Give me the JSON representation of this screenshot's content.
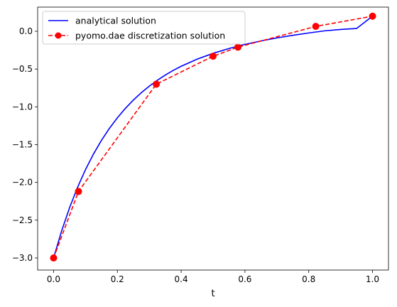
{
  "chart_data": {
    "type": "line",
    "xlabel": "t",
    "ylabel": "",
    "title": "",
    "xlim": [
      -0.05,
      1.05
    ],
    "ylim": [
      -3.16,
      0.32
    ],
    "xticks": [
      0.0,
      0.2,
      0.4,
      0.6,
      0.8,
      1.0
    ],
    "xtick_labels": [
      "0.0",
      "0.2",
      "0.4",
      "0.6",
      "0.8",
      "1.0"
    ],
    "yticks": [
      0.0,
      -0.5,
      -1.0,
      -1.5,
      -2.0,
      -2.5,
      -3.0
    ],
    "ytick_labels": [
      "0.0",
      "−0.5",
      "−1.0",
      "−1.5",
      "−2.0",
      "−2.5",
      "−3.0"
    ],
    "grid": false,
    "legend_position": "top-left",
    "series": [
      {
        "name": "analytical solution",
        "style": "solid",
        "color": "#0000ff",
        "x": [
          0.0,
          0.025,
          0.05,
          0.075,
          0.1,
          0.125,
          0.15,
          0.175,
          0.2,
          0.225,
          0.25,
          0.275,
          0.3,
          0.325,
          0.35,
          0.375,
          0.4,
          0.45,
          0.5,
          0.55,
          0.6,
          0.65,
          0.7,
          0.75,
          0.8,
          0.85,
          0.9,
          0.95,
          1.0
        ],
        "y": [
          -3.0,
          -2.645,
          -2.336,
          -2.067,
          -1.831,
          -1.625,
          -1.444,
          -1.285,
          -1.145,
          -1.021,
          -0.911,
          -0.813,
          -0.726,
          -0.649,
          -0.58,
          -0.518,
          -0.463,
          -0.369,
          -0.292,
          -0.228,
          -0.174,
          -0.128,
          -0.088,
          -0.053,
          -0.022,
          0.006,
          0.024,
          0.037,
          0.2
        ]
      },
      {
        "name": "pyomo.dae discretization solution",
        "style": "dashed",
        "marker": "circle",
        "color": "#ff0000",
        "x": [
          0.0,
          0.078,
          0.322,
          0.5,
          0.578,
          0.822,
          1.0
        ],
        "y": [
          -3.0,
          -2.12,
          -0.7,
          -0.33,
          -0.21,
          0.065,
          0.2
        ]
      }
    ]
  }
}
